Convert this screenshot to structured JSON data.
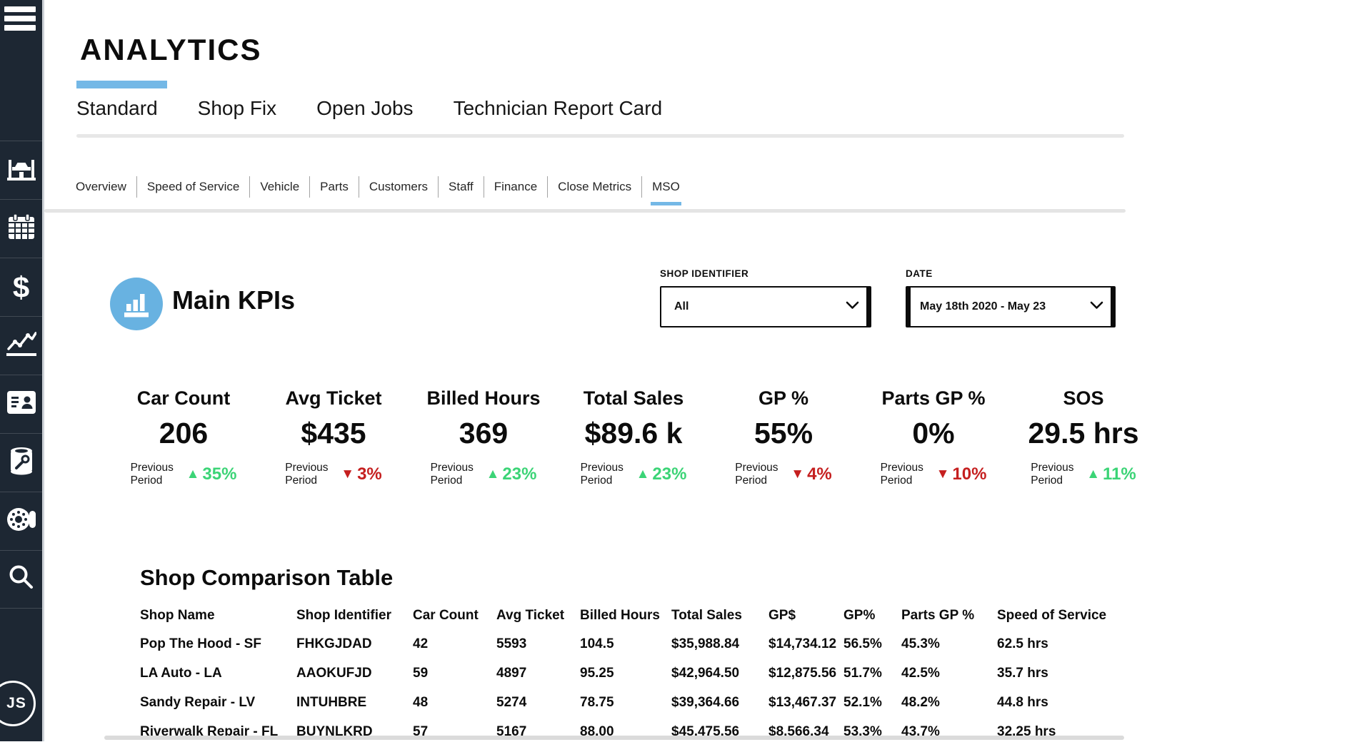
{
  "page_title": "ANALYTICS",
  "sidebar": {
    "menu_icon": "menu-icon",
    "items": [
      {
        "icon": "car-lift-icon"
      },
      {
        "icon": "calendar-icon"
      },
      {
        "icon": "dollar-icon"
      },
      {
        "icon": "line-chart-icon"
      },
      {
        "icon": "contact-card-icon"
      },
      {
        "icon": "oil-filter-icon"
      },
      {
        "icon": "brake-rotor-icon"
      },
      {
        "icon": "search-icon"
      }
    ],
    "avatar_initials": "JS"
  },
  "tabs": {
    "items": [
      {
        "label": "Standard",
        "active": true
      },
      {
        "label": "Shop Fix",
        "active": false
      },
      {
        "label": "Open Jobs",
        "active": false
      },
      {
        "label": "Technician Report Card",
        "active": false
      }
    ]
  },
  "subtabs": {
    "items": [
      {
        "label": "Overview",
        "active": false
      },
      {
        "label": "Speed of Service",
        "active": false
      },
      {
        "label": "Vehicle",
        "active": false
      },
      {
        "label": "Parts",
        "active": false
      },
      {
        "label": "Customers",
        "active": false
      },
      {
        "label": "Staff",
        "active": false
      },
      {
        "label": "Finance",
        "active": false
      },
      {
        "label": "Close Metrics",
        "active": false
      },
      {
        "label": "MSO",
        "active": true
      }
    ]
  },
  "filters": {
    "shop_identifier": {
      "label": "SHOP IDENTIFIER",
      "value": "All"
    },
    "date": {
      "label": "DATE",
      "value": "May 18th 2020 - May 23"
    }
  },
  "main_kpis": {
    "title": "Main KPIs",
    "previous_period_label": "Previous Period",
    "kpis": [
      {
        "label": "Car Count",
        "value": "206",
        "delta": "35%",
        "direction": "up",
        "arrow": "▲"
      },
      {
        "label": "Avg Ticket",
        "value": "$435",
        "delta": "3%",
        "direction": "down",
        "arrow": "▼"
      },
      {
        "label": "Billed Hours",
        "value": "369",
        "delta": "23%",
        "direction": "up",
        "arrow": "▲"
      },
      {
        "label": "Total Sales",
        "value": "$89.6 k",
        "delta": "23%",
        "direction": "up",
        "arrow": "▲"
      },
      {
        "label": "GP %",
        "value": "55%",
        "delta": "4%",
        "direction": "down",
        "arrow": "▼"
      },
      {
        "label": "Parts GP %",
        "value": "0%",
        "delta": "10%",
        "direction": "down",
        "arrow": "▼"
      },
      {
        "label": "SOS",
        "value": "29.5 hrs",
        "delta": "11%",
        "direction": "up",
        "arrow": "▲"
      }
    ]
  },
  "comparison_table": {
    "title": "Shop Comparison Table",
    "columns": [
      "Shop Name",
      "Shop Identifier",
      "Car Count",
      "Avg Ticket",
      "Billed Hours",
      "Total Sales",
      "GP$",
      "GP%",
      "Parts GP %",
      "Speed of Service"
    ],
    "rows": [
      [
        "Pop The Hood - SF",
        "FHKGJDAD",
        "42",
        "5593",
        "104.5",
        "$35,988.84",
        "$14,734.12",
        "56.5%",
        "45.3%",
        "62.5 hrs"
      ],
      [
        "LA Auto - LA",
        "AAOKUFJD",
        "59",
        "4897",
        "95.25",
        "$42,964.50",
        "$12,875.56",
        "51.7%",
        "42.5%",
        "35.7 hrs"
      ],
      [
        "Sandy Repair - LV",
        "INTUHBRE",
        "48",
        "5274",
        "78.75",
        "$39,364.66",
        "$13,467.37",
        "52.1%",
        "48.2%",
        "44.8 hrs"
      ],
      [
        "Riverwalk Repair - FL",
        "BUYNLKRD",
        "57",
        "5167",
        "88.00",
        "$45,475.56",
        "$8,566.34",
        "53.3%",
        "43.7%",
        "32.25 hrs"
      ]
    ]
  },
  "colors": {
    "accent_blue": "#74b8e6",
    "kpi_icon_blue": "#68b2e1",
    "positive_green": "#3bd476",
    "negative_red": "#c51f1f",
    "sidebar_bg": "#1d2733"
  }
}
